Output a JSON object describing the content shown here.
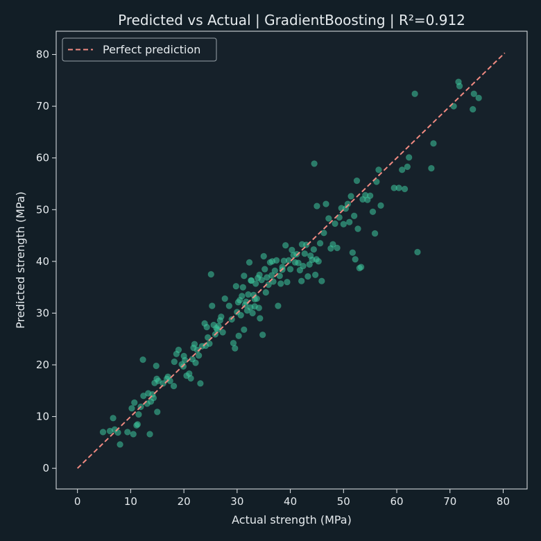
{
  "chart_data": {
    "type": "scatter",
    "title": "Predicted vs Actual  |  GradientBoosting  |  R²=0.912",
    "xlabel": "Actual strength (MPa)",
    "ylabel": "Predicted strength (MPa)",
    "xlim": [
      -4,
      84.5
    ],
    "ylim": [
      -4,
      84.5
    ],
    "xticks": [
      0,
      10,
      20,
      30,
      40,
      50,
      60,
      70,
      80
    ],
    "yticks": [
      0,
      10,
      20,
      30,
      40,
      50,
      60,
      70,
      80
    ],
    "grid": false,
    "legend": {
      "placement": "top-left",
      "entries": [
        "Perfect prediction"
      ]
    },
    "reference_line": {
      "name": "Perfect prediction",
      "x": [
        0,
        80.3
      ],
      "y": [
        0,
        80.3
      ],
      "color": "#f28b82",
      "style": "dashed"
    },
    "point_color": "#3ec79c",
    "background_color": "#121e26",
    "points": [
      [
        4.8,
        7.0
      ],
      [
        6.1,
        7.2
      ],
      [
        6.7,
        9.7
      ],
      [
        7.0,
        7.5
      ],
      [
        7.6,
        6.9
      ],
      [
        8.0,
        4.6
      ],
      [
        9.4,
        7.0
      ],
      [
        10.2,
        11.6
      ],
      [
        10.5,
        6.6
      ],
      [
        10.7,
        12.7
      ],
      [
        11.1,
        8.3
      ],
      [
        11.3,
        8.5
      ],
      [
        11.5,
        10.4
      ],
      [
        11.9,
        11.9
      ],
      [
        12.3,
        21.0
      ],
      [
        12.4,
        14.0
      ],
      [
        13.1,
        12.5
      ],
      [
        13.3,
        14.5
      ],
      [
        13.6,
        6.6
      ],
      [
        13.8,
        12.9
      ],
      [
        14.1,
        14.3
      ],
      [
        14.3,
        13.6
      ],
      [
        14.5,
        16.5
      ],
      [
        14.8,
        19.8
      ],
      [
        14.9,
        17.3
      ],
      [
        15.0,
        10.9
      ],
      [
        15.2,
        16.9
      ],
      [
        16.1,
        16.4
      ],
      [
        16.8,
        17.3
      ],
      [
        17.0,
        17.7
      ],
      [
        17.4,
        16.9
      ],
      [
        18.1,
        15.9
      ],
      [
        18.2,
        20.6
      ],
      [
        18.6,
        22.1
      ],
      [
        19.0,
        22.9
      ],
      [
        19.6,
        20.1
      ],
      [
        19.9,
        19.7
      ],
      [
        20.0,
        21.7
      ],
      [
        20.2,
        20.9
      ],
      [
        20.5,
        17.9
      ],
      [
        21.0,
        18.3
      ],
      [
        21.3,
        17.4
      ],
      [
        21.6,
        21.1
      ],
      [
        21.8,
        23.3
      ],
      [
        22.0,
        24.0
      ],
      [
        22.2,
        20.4
      ],
      [
        22.5,
        22.9
      ],
      [
        22.8,
        21.8
      ],
      [
        23.1,
        16.4
      ],
      [
        23.4,
        23.6
      ],
      [
        23.9,
        28.0
      ],
      [
        24.1,
        23.7
      ],
      [
        24.3,
        27.3
      ],
      [
        24.5,
        25.3
      ],
      [
        24.8,
        24.1
      ],
      [
        25.1,
        37.5
      ],
      [
        25.3,
        31.4
      ],
      [
        25.6,
        27.7
      ],
      [
        25.9,
        25.9
      ],
      [
        26.1,
        27.1
      ],
      [
        26.3,
        26.8
      ],
      [
        26.5,
        27.5
      ],
      [
        26.8,
        28.6
      ],
      [
        27.0,
        29.3
      ],
      [
        27.3,
        26.3
      ],
      [
        27.7,
        32.8
      ],
      [
        28.5,
        31.4
      ],
      [
        29.0,
        28.8
      ],
      [
        29.3,
        24.2
      ],
      [
        29.6,
        23.2
      ],
      [
        29.8,
        35.2
      ],
      [
        30.0,
        30.2
      ],
      [
        30.2,
        32.1
      ],
      [
        30.3,
        25.6
      ],
      [
        30.5,
        32.5
      ],
      [
        30.7,
        29.6
      ],
      [
        30.9,
        33.3
      ],
      [
        31.1,
        35.0
      ],
      [
        31.3,
        37.2
      ],
      [
        31.3,
        26.8
      ],
      [
        31.5,
        31.6
      ],
      [
        31.7,
        32.2
      ],
      [
        31.9,
        30.5
      ],
      [
        32.1,
        33.6
      ],
      [
        32.3,
        39.8
      ],
      [
        32.5,
        31.1
      ],
      [
        32.7,
        36.3
      ],
      [
        32.9,
        30.0
      ],
      [
        33.1,
        33.5
      ],
      [
        33.3,
        31.3
      ],
      [
        33.5,
        35.7
      ],
      [
        33.7,
        32.8
      ],
      [
        33.9,
        36.8
      ],
      [
        34.1,
        31.0
      ],
      [
        34.3,
        29.0
      ],
      [
        34.6,
        36.4
      ],
      [
        34.8,
        25.8
      ],
      [
        35.0,
        41.0
      ],
      [
        35.2,
        38.5
      ],
      [
        35.4,
        34.0
      ],
      [
        35.6,
        36.9
      ],
      [
        35.9,
        35.5
      ],
      [
        36.2,
        39.8
      ],
      [
        36.5,
        37.3
      ],
      [
        36.8,
        36.1
      ],
      [
        37.1,
        38.2
      ],
      [
        37.4,
        40.2
      ],
      [
        37.7,
        31.4
      ],
      [
        38.0,
        37.2
      ],
      [
        38.2,
        35.7
      ],
      [
        38.5,
        38.9
      ],
      [
        38.8,
        40.1
      ],
      [
        39.1,
        43.1
      ],
      [
        39.4,
        36.0
      ],
      [
        39.7,
        40.2
      ],
      [
        40.0,
        38.5
      ],
      [
        40.3,
        42.2
      ],
      [
        40.6,
        41.2
      ],
      [
        40.9,
        39.8
      ],
      [
        41.2,
        41.4
      ],
      [
        41.5,
        39.7
      ],
      [
        41.8,
        38.3
      ],
      [
        42.1,
        36.2
      ],
      [
        42.4,
        39.1
      ],
      [
        42.7,
        41.5
      ],
      [
        43.0,
        43.2
      ],
      [
        43.3,
        37.1
      ],
      [
        43.6,
        39.4
      ],
      [
        43.8,
        41.1
      ],
      [
        44.1,
        40.3
      ],
      [
        44.4,
        42.3
      ],
      [
        44.5,
        58.9
      ],
      [
        44.7,
        37.4
      ],
      [
        45.0,
        50.7
      ],
      [
        45.3,
        40.0
      ],
      [
        45.6,
        43.5
      ],
      [
        45.9,
        36.2
      ],
      [
        46.3,
        45.5
      ],
      [
        46.7,
        51.1
      ],
      [
        47.2,
        48.3
      ],
      [
        47.6,
        42.5
      ],
      [
        48.0,
        43.3
      ],
      [
        48.4,
        47.3
      ],
      [
        48.8,
        42.6
      ],
      [
        49.2,
        48.5
      ],
      [
        49.6,
        50.3
      ],
      [
        50.0,
        47.2
      ],
      [
        50.4,
        50.2
      ],
      [
        50.8,
        51.1
      ],
      [
        51.1,
        47.6
      ],
      [
        51.4,
        52.6
      ],
      [
        51.7,
        41.7
      ],
      [
        52.0,
        48.8
      ],
      [
        52.2,
        40.4
      ],
      [
        52.5,
        55.6
      ],
      [
        52.7,
        46.3
      ],
      [
        53.0,
        38.7
      ],
      [
        53.3,
        38.9
      ],
      [
        53.6,
        52.0
      ],
      [
        54.1,
        52.8
      ],
      [
        54.5,
        51.9
      ],
      [
        55.0,
        52.7
      ],
      [
        55.5,
        49.6
      ],
      [
        55.9,
        45.4
      ],
      [
        56.2,
        55.4
      ],
      [
        56.6,
        57.7
      ],
      [
        57.0,
        50.8
      ],
      [
        59.5,
        54.2
      ],
      [
        60.4,
        54.2
      ],
      [
        61.0,
        57.7
      ],
      [
        61.5,
        54.0
      ],
      [
        62.0,
        58.3
      ],
      [
        62.3,
        60.1
      ],
      [
        63.4,
        72.4
      ],
      [
        63.9,
        41.8
      ],
      [
        66.5,
        58.0
      ],
      [
        66.9,
        62.8
      ],
      [
        70.7,
        70.0
      ],
      [
        71.6,
        74.7
      ],
      [
        71.8,
        73.9
      ],
      [
        74.3,
        69.4
      ],
      [
        74.5,
        72.4
      ],
      [
        75.4,
        71.6
      ],
      [
        32.6,
        36.3
      ],
      [
        33.3,
        32.7
      ],
      [
        34.2,
        37.4
      ],
      [
        36.6,
        40.0
      ],
      [
        38.5,
        38.4
      ],
      [
        42.2,
        43.3
      ],
      [
        44.9,
        40.4
      ]
    ]
  }
}
